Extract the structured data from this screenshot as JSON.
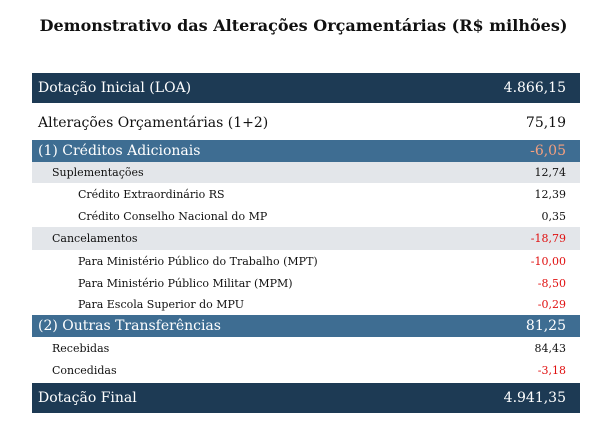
{
  "header": {
    "title": "Demonstrativo das Alterações Orçamentárias (R$ milhões)"
  },
  "table": {
    "rows": [
      [
        "Dotação Inicial (LOA)",
        "4.866,15"
      ],
      [
        "Alterações Orçamentárias (1+2)",
        "75,19"
      ],
      [
        "(1) Créditos Adicionais",
        "-6,05"
      ],
      [
        "Suplementações",
        "12,74"
      ],
      [
        "Crédito Extraordinário RS",
        "12,39"
      ],
      [
        "Crédito Conselho Nacional do MP",
        "0,35"
      ],
      [
        "Cancelamentos",
        "-18,79"
      ],
      [
        "Para Ministério Público do Trabalho (MPT)",
        "-10,00"
      ],
      [
        "Para Ministério Público Militar (MPM)",
        "-8,50"
      ],
      [
        "Para Escola Superior do MPU",
        "-0,29"
      ],
      [
        "(2) Outras Transferências",
        "81,25"
      ],
      [
        "Recebidas",
        "84,43"
      ],
      [
        "Concedidas",
        "-3,18"
      ],
      [
        "Dotação Final",
        "4.941,35"
      ]
    ]
  }
}
